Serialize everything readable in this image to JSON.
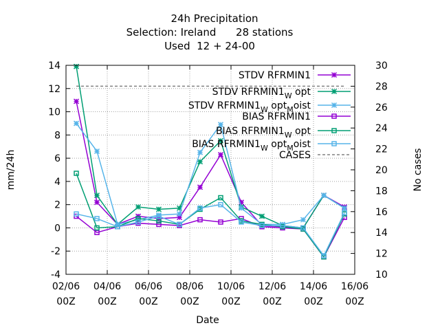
{
  "chart_data": {
    "type": "line",
    "title_lines": [
      "24h Precipitation",
      "Selection: Ireland      28 stations",
      "Used  12 + 24-00"
    ],
    "xlabel": "Date",
    "ylabel": "mm/24h",
    "y2label": "No cases",
    "x_ticks": [
      {
        "top": "02/06",
        "bottom": "00Z",
        "value": 0
      },
      {
        "top": "04/06",
        "bottom": "00Z",
        "value": 2
      },
      {
        "top": "06/06",
        "bottom": "00Z",
        "value": 4
      },
      {
        "top": "08/06",
        "bottom": "00Z",
        "value": 6
      },
      {
        "top": "10/06",
        "bottom": "00Z",
        "value": 8
      },
      {
        "top": "12/06",
        "bottom": "00Z",
        "value": 10
      },
      {
        "top": "14/06",
        "bottom": "00Z",
        "value": 12
      },
      {
        "top": "16/06",
        "bottom": "00Z",
        "value": 14
      }
    ],
    "xlim": [
      0,
      14
    ],
    "ylim": [
      -4,
      14
    ],
    "y_ticks": [
      -4,
      -2,
      0,
      2,
      4,
      6,
      8,
      10,
      12,
      14
    ],
    "y2lim": [
      10,
      30
    ],
    "y2_ticks": [
      10,
      12,
      14,
      16,
      18,
      20,
      22,
      24,
      26,
      28,
      30
    ],
    "grid": true,
    "legend_position": "top-right",
    "x": [
      0.5,
      1.5,
      2.5,
      3.5,
      4.5,
      5.5,
      6.5,
      7.5,
      8.5,
      9.5,
      10.5,
      11.5,
      12.5,
      13.5
    ],
    "series": [
      {
        "name": "STDV RFRMIN1",
        "name_sub": "",
        "name_rest": "",
        "color": "#9400d3",
        "marker": "star",
        "axis": "y",
        "values": [
          10.9,
          2.2,
          0.3,
          1.0,
          0.8,
          0.9,
          3.5,
          6.3,
          2.2,
          0.2,
          0.1,
          0.0,
          2.8,
          1.8
        ]
      },
      {
        "name": "STDV RFRMIN1",
        "name_sub": "W",
        "name_rest": "opt",
        "color": "#009e73",
        "marker": "star",
        "axis": "y",
        "values": [
          13.9,
          2.8,
          0.3,
          1.8,
          1.6,
          1.7,
          5.7,
          7.5,
          1.8,
          1.0,
          0.2,
          0.0,
          2.8,
          1.7
        ]
      },
      {
        "name": "STDV RFRMIN1",
        "name_sub": "W",
        "name_rest": "opt",
        "name_sub2": "M",
        "name_rest2": "oist",
        "color": "#56b4e9",
        "marker": "star",
        "axis": "y",
        "values": [
          9.0,
          6.6,
          0.3,
          0.7,
          1.1,
          1.2,
          6.5,
          8.9,
          1.7,
          0.3,
          0.3,
          0.7,
          2.8,
          1.7
        ]
      },
      {
        "name": "BIAS RFRMIN1",
        "name_sub": "",
        "name_rest": "",
        "color": "#9400d3",
        "marker": "square",
        "axis": "y",
        "values": [
          1.0,
          -0.4,
          0.1,
          0.4,
          0.3,
          0.2,
          0.7,
          0.5,
          0.8,
          0.1,
          0.0,
          -0.1,
          -2.5,
          0.9
        ]
      },
      {
        "name": "BIAS RFRMIN1",
        "name_sub": "W",
        "name_rest": "opt",
        "color": "#009e73",
        "marker": "square",
        "axis": "y",
        "values": [
          4.7,
          0.0,
          0.1,
          0.8,
          0.6,
          0.3,
          1.6,
          2.6,
          0.6,
          0.3,
          0.1,
          -0.1,
          -2.5,
          1.2
        ]
      },
      {
        "name": "BIAS RFRMIN1",
        "name_sub": "W",
        "name_rest": "opt",
        "name_sub2": "M",
        "name_rest2": "oist",
        "color": "#56b4e9",
        "marker": "square",
        "axis": "y",
        "values": [
          1.2,
          0.8,
          0.1,
          0.5,
          1.0,
          0.3,
          1.7,
          2.0,
          0.5,
          0.2,
          0.2,
          0.0,
          -2.4,
          1.3
        ]
      },
      {
        "name": "CASES",
        "name_sub": "",
        "name_rest": "",
        "color": "#808080",
        "marker": "none",
        "axis": "y2",
        "dashed": true,
        "values": [
          28,
          28,
          28,
          28,
          28,
          28,
          28,
          28,
          28,
          28,
          28,
          28,
          28,
          28
        ]
      }
    ]
  }
}
